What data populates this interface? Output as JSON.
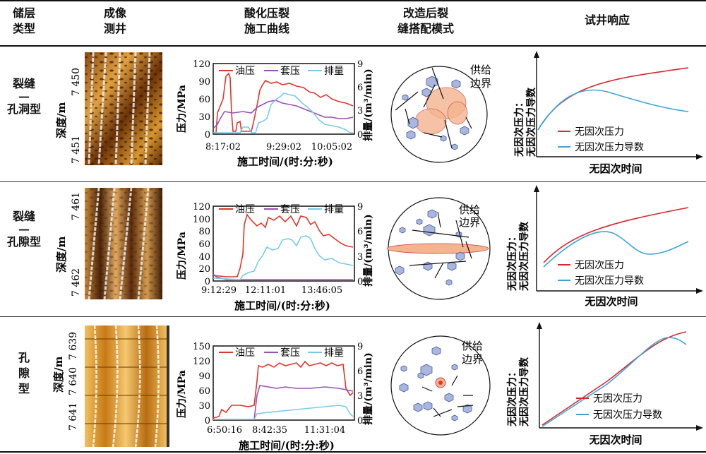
{
  "header": {
    "col1": [
      "储层",
      "类型"
    ],
    "col2": [
      "成像",
      "测井"
    ],
    "col3": [
      "酸化压裂",
      "施工曲线"
    ],
    "col4": [
      "改造后裂",
      "缝搭配模式"
    ],
    "col5": "试井响应"
  },
  "rows": [
    {
      "type": [
        "裂缝",
        "—",
        "孔洞型"
      ],
      "depth_label": "深度/m",
      "depth_top": "7 450",
      "depth_bottom": "7 451",
      "frac": {
        "y_left_ticks": [
          "120",
          "90",
          "60",
          "30",
          "0"
        ],
        "y_right_ticks": [
          "9",
          "6",
          "3",
          "0"
        ],
        "x_ticks": [
          "8:17:02",
          "9:29:02",
          "10:05:02"
        ],
        "legend": [
          "油压",
          "套压",
          "排量"
        ],
        "ylabel_left": "压力/MPa",
        "ylabel_right": "排量/(m³/min)",
        "xlabel": "施工时间/(时:分:秒)"
      },
      "mode": {
        "label": [
          "供给",
          "边界"
        ]
      },
      "test": {
        "ylabel": [
          "无因次压力：",
          "无因次压力导数"
        ],
        "legend": [
          "无因次压力",
          "无因次压力导数"
        ],
        "xlabel": "无因次时间"
      }
    },
    {
      "type": [
        "裂缝",
        "—",
        "孔隙型"
      ],
      "depth_label": "深度/m",
      "depth_top": "7 461",
      "depth_bottom": "7 462",
      "frac": {
        "y_left_ticks": [
          "120",
          "100",
          "80",
          "60",
          "40",
          "20",
          "0"
        ],
        "y_right_ticks": [
          "9",
          "6",
          "3",
          "0"
        ],
        "x_ticks": [
          "9:12:29",
          "12:11:01",
          "13:46:05"
        ],
        "legend": [
          "油压",
          "套压",
          "排量"
        ],
        "ylabel_left": "压力/MPa",
        "ylabel_right": "排量/(m³/min)",
        "xlabel": "施工时间/(时:分:秒)"
      },
      "mode": {
        "label": [
          "供给",
          "边界"
        ]
      },
      "test": {
        "ylabel": [
          "无因次压力：",
          "无因次压力导数"
        ],
        "legend": [
          "无因次压力",
          "无因次压力导数"
        ],
        "xlabel": "无因次时间"
      }
    },
    {
      "type": [
        "孔",
        "隙",
        "型"
      ],
      "depth_label": "深度/m",
      "depth_top": "7 639",
      "depth_mid": "7 640",
      "depth_bottom": "7 641",
      "frac": {
        "y_left_ticks": [
          "150",
          "120",
          "90",
          "60",
          "30",
          "0"
        ],
        "y_right_ticks": [
          "9",
          "6",
          "3",
          "0"
        ],
        "x_ticks": [
          "6:50:16",
          "8:42:35",
          "11:31:04"
        ],
        "legend": [
          "油压",
          "套压",
          "排量"
        ],
        "ylabel_left": "压力/MPa",
        "ylabel_right": "排量/(m³/min)",
        "xlabel": "施工时间/(时:分:秒)"
      },
      "mode": {
        "label": [
          "供给",
          "边界"
        ]
      },
      "test": {
        "ylabel": [
          "无因次压力：",
          "无因次压力导数"
        ],
        "legend": [
          "无因次压力",
          "无因次压力导数"
        ],
        "xlabel": "无因次时间"
      }
    }
  ],
  "colors": {
    "oil": "#e0352b",
    "casing": "#9b4fb0",
    "rate": "#78cbe8",
    "pressure": "#d8262e",
    "derivative": "#3aa6d8",
    "vug_fill": "#a9b6de",
    "frac_fill": "#f4b48f"
  }
}
